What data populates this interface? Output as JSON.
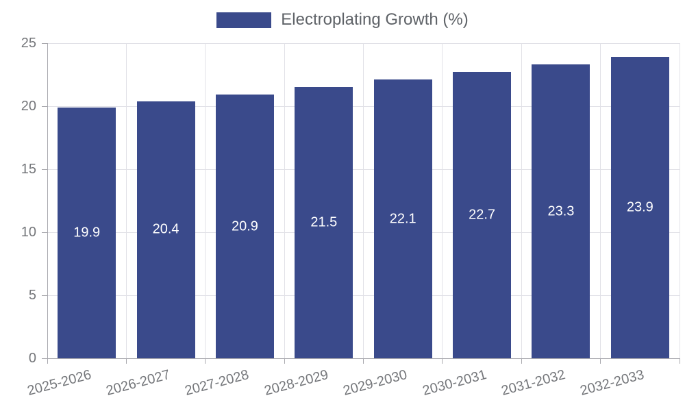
{
  "legend": {
    "label": "Electroplating Growth (%)"
  },
  "chart_data": {
    "type": "bar",
    "title": "Electroplating Growth (%)",
    "categories": [
      "2025-2026",
      "2026-2027",
      "2027-2028",
      "2028-2029",
      "2029-2030",
      "2030-2031",
      "2031-2032",
      "2032-2033"
    ],
    "values": [
      19.9,
      20.4,
      20.9,
      21.5,
      22.1,
      22.7,
      23.3,
      23.9
    ],
    "value_labels": [
      "19.9",
      "20.4",
      "20.9",
      "21.5",
      "22.1",
      "22.7",
      "23.3",
      "23.9"
    ],
    "xlabel": "",
    "ylabel": "",
    "ylim": [
      0,
      25
    ],
    "yticks": [
      0,
      5,
      10,
      15,
      20,
      25
    ],
    "grid": "on",
    "legend_position": "top-center",
    "x_label_rotation_deg": -15,
    "bar_color": "#3A4A8B",
    "value_label_color": "#ffffff",
    "axis_text_color": "#74767a",
    "legend_text_color": "#5f6368",
    "grid_color": "#e1e1e7",
    "axis_line_color": "#a9a9ae",
    "background_color": "#ffffff"
  }
}
